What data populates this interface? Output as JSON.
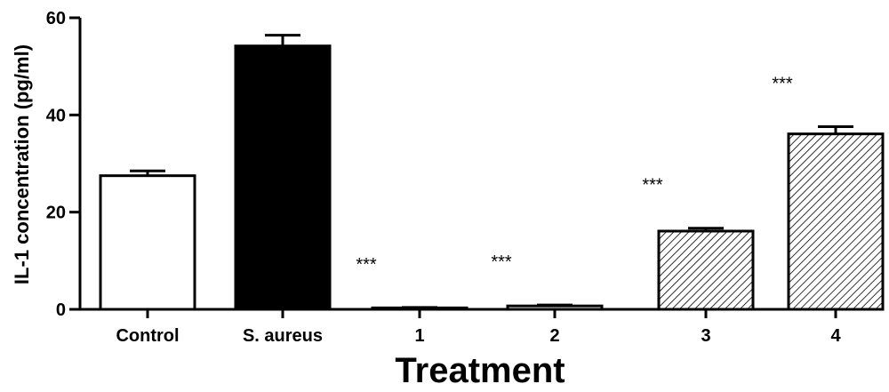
{
  "chart_data": {
    "type": "bar",
    "title": "",
    "xlabel": "Treatment",
    "ylabel": "IL-1 concentration (pg/ml)",
    "ylim": [
      0,
      60
    ],
    "yticks": [
      0,
      20,
      40,
      60
    ],
    "ytick_labels": [
      "0",
      "20",
      "40",
      "60"
    ],
    "grid": false,
    "categories": [
      "Control",
      "S. aureus",
      "1",
      "2",
      "3",
      "4"
    ],
    "values": [
      27.5,
      54.2,
      0.3,
      0.7,
      16.1,
      36.1
    ],
    "errors": [
      1.0,
      2.2,
      0.1,
      0.2,
      0.6,
      1.5
    ],
    "annotations": [
      "",
      "***",
      "***",
      "***",
      "***",
      "***"
    ],
    "fills": [
      "white",
      "black",
      "none",
      "none",
      "hatch",
      "hatch"
    ],
    "colors": {
      "bar_stroke": "#000000",
      "solid": "#000000",
      "empty": "#ffffff"
    }
  }
}
